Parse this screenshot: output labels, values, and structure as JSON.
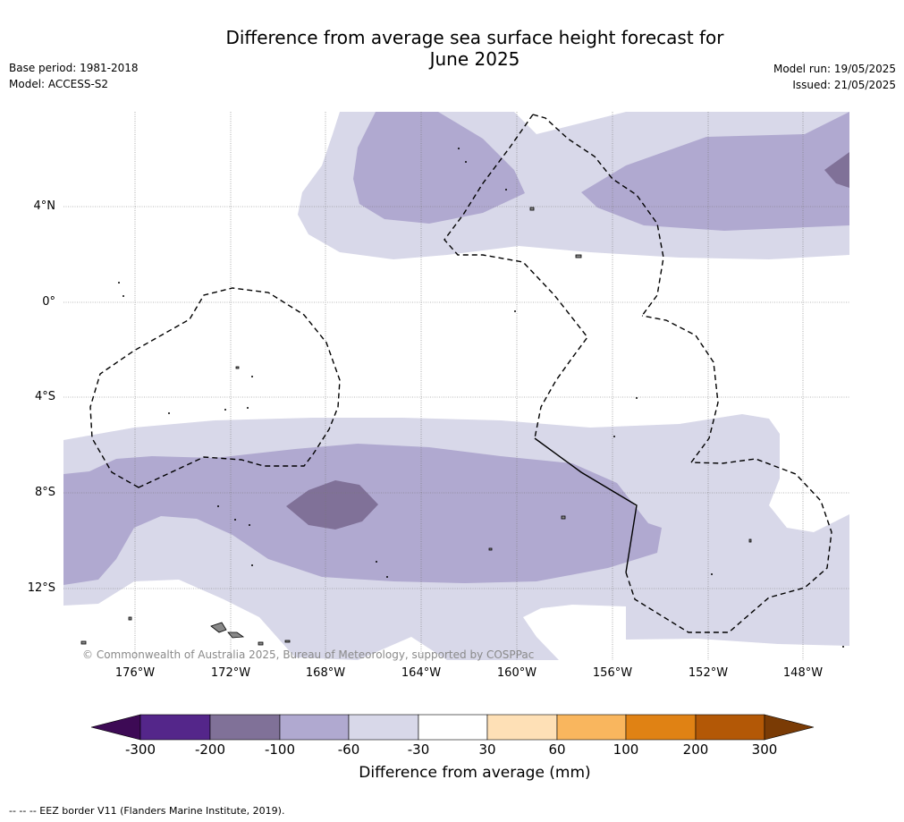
{
  "header": {
    "title_line1": "Difference from average sea surface height forecast for",
    "title_line2": "June 2025",
    "base_period": "Base period: 1981-2018",
    "model": "Model: ACCESS-S2",
    "model_run": "Model run: 19/05/2025",
    "issued": "Issued: 21/05/2025"
  },
  "map": {
    "longitude_labels": [
      "176°W",
      "172°W",
      "168°W",
      "164°W",
      "160°W",
      "156°W",
      "152°W",
      "148°W"
    ],
    "latitude_labels": [
      "4°N",
      "0°",
      "4°S",
      "8°S",
      "12°S"
    ],
    "copyright": "© Commonwealth of Australia 2025, Bureau of Meteorology, supported by COSPPac",
    "fill_colors": {
      "minus_200_to_100": "#807198",
      "minus_100_to_60": "#b0a9d0",
      "minus_60_to_30": "#d8d8e9",
      "minus_30_to_30": "#ffffff"
    }
  },
  "colorbar": {
    "ticks": [
      "-300",
      "-200",
      "-100",
      "-60",
      "-30",
      "30",
      "60",
      "100",
      "200",
      "300"
    ],
    "colors": [
      "#3d0a55",
      "#54268a",
      "#807198",
      "#b0a9d0",
      "#d8d8e9",
      "#ffffff",
      "#fee0b6",
      "#f9b65e",
      "#e08214",
      "#b35806",
      "#7a3b05"
    ],
    "label": "Difference from average (mm)"
  },
  "footnote": "--  --  -- EEZ border V11 (Flanders Marine Institute, 2019)."
}
